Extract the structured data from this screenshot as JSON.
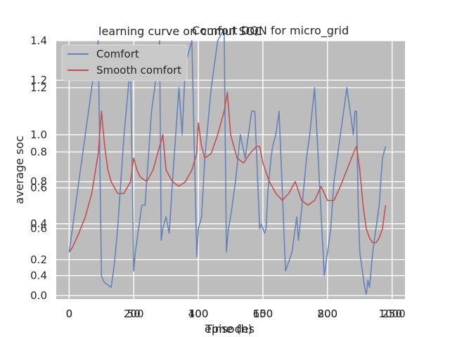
{
  "figure": {
    "title_overlay": "learning curve on cumul SOC",
    "title_overlay_2": "Comfort DQN for micro_grid"
  },
  "chart_data": [
    {
      "type": "line",
      "title": "Comfort DQN for micro_grid",
      "xlabel": "episodes",
      "ylabel": "average soc",
      "xlim": [
        -40,
        1040
      ],
      "ylim": [
        0.3,
        1.4
      ],
      "xticks": [
        0,
        200,
        400,
        600,
        800,
        1000
      ],
      "yticks": [
        0.4,
        0.6,
        0.8,
        1.0,
        1.2,
        1.4
      ],
      "grid": true,
      "legend": {
        "position": "top-left",
        "entries": [
          "Comfort",
          "Smooth comfort"
        ]
      },
      "series": [
        {
          "name": "Comfort",
          "color": "#6583bb",
          "x": [
            0,
            10,
            30,
            50,
            70,
            90,
            100,
            105,
            110,
            120,
            130,
            140,
            150,
            170,
            190,
            200,
            205,
            215,
            225,
            235,
            245,
            255,
            265,
            280,
            285,
            290,
            300,
            310,
            320,
            330,
            340,
            350,
            360,
            380,
            395,
            400,
            410,
            420,
            440,
            460,
            480,
            487,
            493,
            500,
            515,
            530,
            545,
            555,
            565,
            575,
            590,
            595,
            600,
            605,
            610,
            615,
            625,
            630,
            640,
            650,
            670,
            690,
            705,
            710,
            725,
            735,
            745,
            760,
            790,
            800,
            810,
            820,
            840,
            860,
            880,
            885,
            890,
            895,
            900,
            910,
            915,
            920,
            925,
            930,
            940,
            950,
            960,
            970,
            980
          ],
          "y": [
            0.5,
            0.6,
            0.8,
            1.0,
            1.2,
            1.4,
            0.4,
            0.38,
            0.37,
            0.36,
            0.35,
            0.45,
            0.6,
            1.0,
            1.3,
            0.42,
            0.5,
            0.6,
            0.7,
            0.7,
            0.9,
            1.1,
            1.2,
            1.4,
            0.55,
            0.6,
            0.65,
            0.58,
            0.8,
            1.0,
            1.2,
            1.0,
            1.3,
            1.4,
            0.48,
            0.6,
            0.65,
            0.9,
            1.2,
            1.4,
            1.45,
            0.5,
            0.6,
            0.65,
            0.8,
            1.0,
            0.9,
            1.0,
            1.1,
            1.1,
            0.6,
            0.62,
            0.6,
            0.58,
            0.6,
            0.75,
            0.9,
            0.95,
            1.0,
            1.1,
            0.42,
            0.5,
            0.65,
            0.55,
            0.75,
            0.9,
            1.0,
            1.2,
            0.4,
            0.5,
            0.6,
            0.8,
            1.0,
            1.2,
            1.0,
            1.1,
            1.1,
            0.7,
            0.5,
            0.4,
            0.35,
            0.32,
            0.38,
            0.35,
            0.5,
            0.6,
            0.7,
            0.9,
            0.95
          ]
        },
        {
          "name": "Smooth comfort",
          "color": "#c44e52",
          "x": [
            0,
            10,
            30,
            50,
            70,
            90,
            100,
            110,
            120,
            130,
            150,
            170,
            190,
            200,
            210,
            220,
            240,
            260,
            280,
            290,
            300,
            320,
            340,
            360,
            380,
            395,
            400,
            410,
            420,
            440,
            460,
            480,
            490,
            500,
            520,
            540,
            560,
            580,
            590,
            600,
            620,
            640,
            660,
            680,
            700,
            720,
            740,
            760,
            780,
            800,
            820,
            840,
            860,
            880,
            890,
            900,
            910,
            920,
            930,
            940,
            950,
            960,
            970,
            980
          ],
          "y": [
            0.5,
            0.52,
            0.58,
            0.65,
            0.75,
            0.92,
            1.1,
            0.95,
            0.85,
            0.8,
            0.75,
            0.75,
            0.8,
            0.9,
            0.85,
            0.82,
            0.8,
            0.85,
            0.95,
            1.0,
            0.85,
            0.8,
            0.78,
            0.8,
            0.85,
            0.92,
            1.05,
            0.95,
            0.9,
            0.92,
            1.0,
            1.1,
            1.18,
            1.0,
            0.9,
            0.88,
            0.92,
            0.95,
            0.95,
            0.88,
            0.8,
            0.75,
            0.72,
            0.75,
            0.8,
            0.72,
            0.7,
            0.72,
            0.78,
            0.72,
            0.72,
            0.78,
            0.85,
            0.92,
            0.95,
            0.85,
            0.7,
            0.6,
            0.56,
            0.54,
            0.54,
            0.56,
            0.6,
            0.7
          ]
        }
      ]
    },
    {
      "type": "line",
      "title": "learning curve on cumul SOC",
      "xlabel": "Time (h)",
      "ylabel": "",
      "xlim": [
        -10,
        260
      ],
      "ylim": [
        -0.02,
        1.42
      ],
      "xticks": [
        0,
        50,
        100,
        150,
        200,
        250
      ],
      "yticks": [
        0.0,
        0.2,
        0.4,
        0.6,
        0.8,
        1.2
      ],
      "grid": true,
      "series": []
    }
  ]
}
